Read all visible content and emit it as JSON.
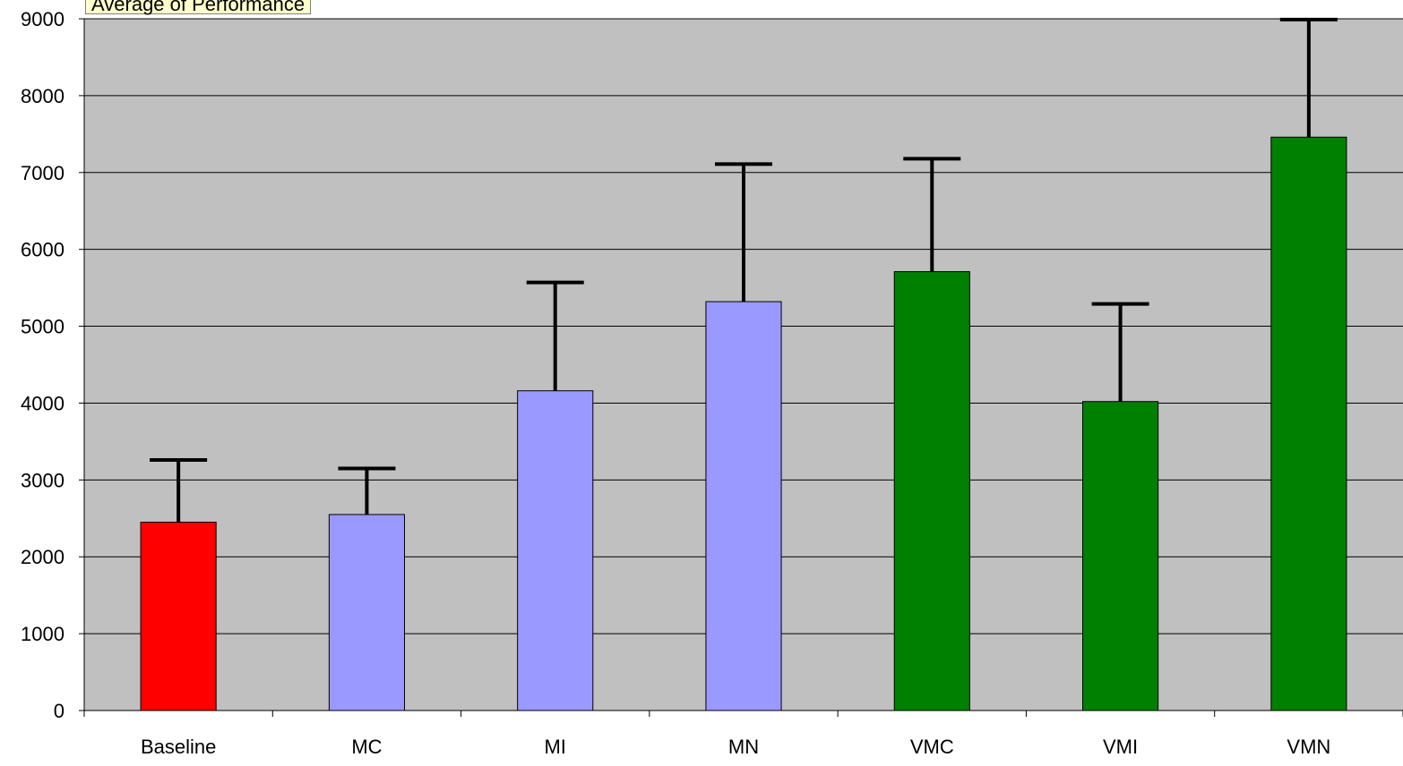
{
  "chart_data": {
    "type": "bar",
    "title": "Average of Performance",
    "xlabel": "",
    "ylabel": "",
    "categories": [
      "Baseline",
      "MC",
      "MI",
      "MN",
      "VMC",
      "VMI",
      "VMN"
    ],
    "values": [
      2450,
      2550,
      4160,
      5320,
      5710,
      4020,
      7460
    ],
    "error_upper": [
      3260,
      3150,
      5570,
      7110,
      7180,
      5290,
      8990
    ],
    "bar_colors": [
      "#ff0000",
      "#9999ff",
      "#9999ff",
      "#9999ff",
      "#008000",
      "#008000",
      "#008000"
    ],
    "ylim": [
      0,
      9000
    ],
    "yticks": [
      "0",
      "1000",
      "2000",
      "3000",
      "4000",
      "5000",
      "6000",
      "7000",
      "8000",
      "9000"
    ],
    "grid": true,
    "plot_background": "#c0c0c0",
    "legend": "none"
  }
}
